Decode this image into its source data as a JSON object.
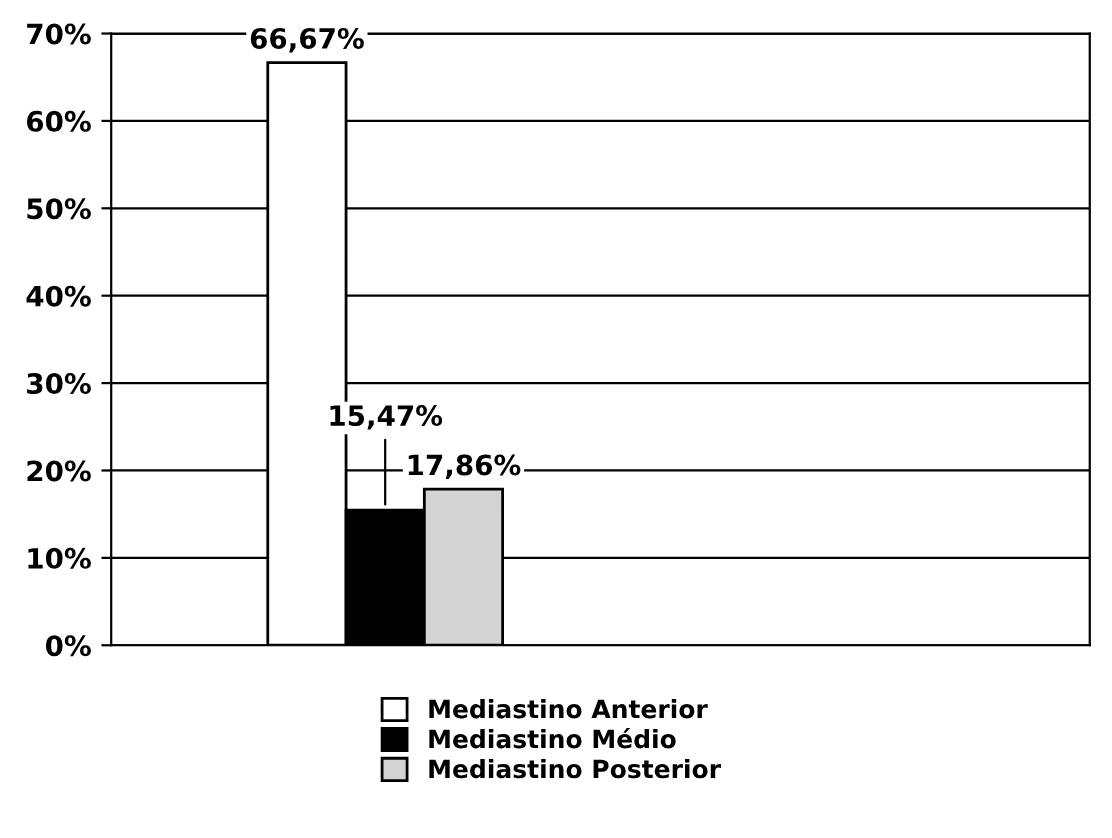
{
  "chart_data": {
    "type": "bar",
    "categories": [
      null
    ],
    "series": [
      {
        "name": "Mediastino Anterior",
        "color": "#ffffff",
        "values": [
          66.67
        ],
        "value_labels": [
          "66,67%"
        ]
      },
      {
        "name": "Mediastino Médio",
        "color": "#000000",
        "values": [
          15.47
        ],
        "value_labels": [
          "15,47%"
        ]
      },
      {
        "name": "Mediastino Posterior",
        "color": "#d4d4d4",
        "values": [
          17.86
        ],
        "value_labels": [
          "17,86%"
        ]
      }
    ],
    "ylim": [
      0,
      70
    ],
    "yticks": [
      {
        "value": 0,
        "label": "0%"
      },
      {
        "value": 10,
        "label": "10%"
      },
      {
        "value": 20,
        "label": "20%"
      },
      {
        "value": 30,
        "label": "30%"
      },
      {
        "value": 40,
        "label": "40%"
      },
      {
        "value": 50,
        "label": "50%"
      },
      {
        "value": 60,
        "label": "60%"
      },
      {
        "value": 70,
        "label": "70%"
      }
    ],
    "grid": "y",
    "legend": "bottom"
  }
}
